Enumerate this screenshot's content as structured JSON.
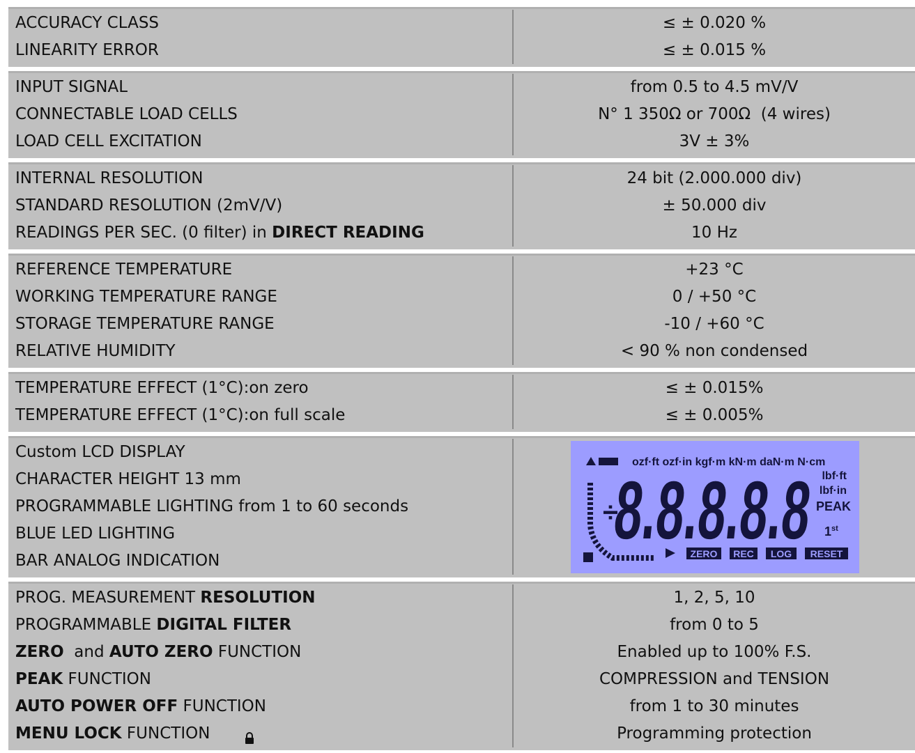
{
  "table": {
    "groups": [
      {
        "rows": [
          {
            "label": [
              {
                "text": "ACCURACY CLASS"
              }
            ],
            "value": "≤ ± 0.020 %"
          },
          {
            "label": [
              {
                "text": "LINEARITY ERROR"
              }
            ],
            "value": "≤ ± 0.015 %"
          }
        ]
      },
      {
        "rows": [
          {
            "label": [
              {
                "text": "INPUT SIGNAL"
              }
            ],
            "value": "from 0.5 to 4.5 mV/V"
          },
          {
            "label": [
              {
                "text": "CONNECTABLE LOAD CELLS"
              }
            ],
            "value": "N° 1 350Ω or 700Ω  (4 wires)"
          },
          {
            "label": [
              {
                "text": "LOAD CELL EXCITATION"
              }
            ],
            "value": "3V ± 3%"
          }
        ]
      },
      {
        "rows": [
          {
            "label": [
              {
                "text": "INTERNAL RESOLUTION"
              }
            ],
            "value": "24 bit (2.000.000 div)"
          },
          {
            "label": [
              {
                "text": "STANDARD RESOLUTION (2mV/V)"
              }
            ],
            "value": "± 50.000 div"
          },
          {
            "label": [
              {
                "text": "READINGS PER SEC. (0 filter) in "
              },
              {
                "text": "DIRECT READING",
                "bold": true
              }
            ],
            "value": "10 Hz"
          }
        ]
      },
      {
        "rows": [
          {
            "label": [
              {
                "text": "REFERENCE TEMPERATURE"
              }
            ],
            "value": "+23 °C"
          },
          {
            "label": [
              {
                "text": "WORKING TEMPERATURE RANGE"
              }
            ],
            "value": "0 / +50 °C"
          },
          {
            "label": [
              {
                "text": "STORAGE TEMPERATURE RANGE"
              }
            ],
            "value": "-10 / +60 °C"
          },
          {
            "label": [
              {
                "text": "RELATIVE HUMIDITY"
              }
            ],
            "value": "< 90 % non condensed"
          }
        ]
      },
      {
        "rows": [
          {
            "label": [
              {
                "text": "TEMPERATURE EFFECT (1°C):on zero"
              }
            ],
            "value": "≤ ± 0.015%"
          },
          {
            "label": [
              {
                "text": "TEMPERATURE EFFECT (1°C):on full scale"
              }
            ],
            "value": "≤ ± 0.005%"
          }
        ]
      },
      {
        "rows": [
          {
            "label": [
              {
                "text": "Custom LCD DISPLAY"
              }
            ]
          },
          {
            "label": [
              {
                "text": "CHARACTER HEIGHT 13 mm"
              }
            ]
          },
          {
            "label": [
              {
                "text": "PROGRAMMABLE LIGHTING from 1 to 60 seconds"
              }
            ]
          },
          {
            "label": [
              {
                "text": "BLUE LED LIGHTING"
              }
            ]
          },
          {
            "label": [
              {
                "text": "BAR ANALOG INDICATION"
              }
            ]
          }
        ]
      },
      {
        "rows": [
          {
            "label": [
              {
                "text": "PROG. MEASUREMENT "
              },
              {
                "text": "RESOLUTION",
                "bold": true
              }
            ],
            "value": "1, 2, 5, 10"
          },
          {
            "label": [
              {
                "text": "PROGRAMMABLE "
              },
              {
                "text": "DIGITAL FILTER",
                "bold": true
              }
            ],
            "value": "from 0 to 5"
          },
          {
            "label": [
              {
                "text": "ZERO",
                "bold": true
              },
              {
                "text": "  and "
              },
              {
                "text": "AUTO ZERO",
                "bold": true
              },
              {
                "text": " FUNCTION"
              }
            ],
            "value": "Enabled up to 100% F.S."
          },
          {
            "label": [
              {
                "text": "PEAK",
                "bold": true
              },
              {
                "text": " FUNCTION"
              }
            ],
            "value": "COMPRESSION and TENSION"
          },
          {
            "label": [
              {
                "text": "AUTO POWER OFF",
                "bold": true
              },
              {
                "text": " FUNCTION"
              }
            ],
            "value": "from 1 to 30 minutes"
          },
          {
            "label": [
              {
                "text": "MENU LOCK",
                "bold": true
              },
              {
                "text": " FUNCTION"
              }
            ],
            "value": "Programming protection"
          }
        ]
      }
    ]
  },
  "lcd": {
    "units_top": "ozf·ft ozf·in kgf·m kN·m daN·m N·cm",
    "units_right": [
      "lbf·ft",
      "lbf·in"
    ],
    "peak": "PEAK",
    "divide": "÷",
    "digits": "8.8.8.8.8",
    "ordinal_number": "1",
    "ordinal_suffix": "st",
    "buttons": [
      "ZERO",
      "REC",
      "LOG",
      "RESET"
    ]
  }
}
